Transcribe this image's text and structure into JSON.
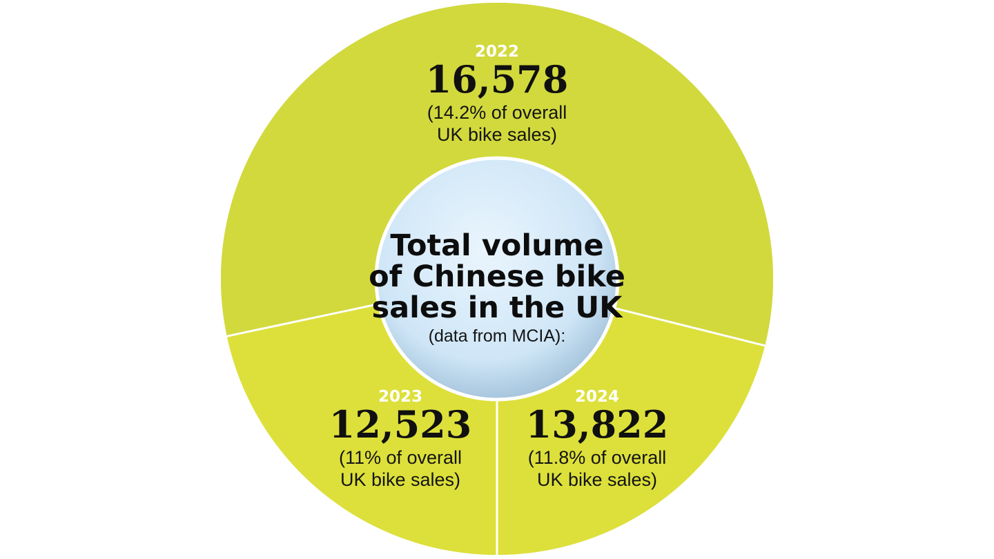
{
  "chart_data": {
    "type": "pie",
    "center_label": {
      "title_lines": [
        "Total volume",
        "of Chinese bike",
        "sales in the UK"
      ],
      "subtitle": "(data from MCIA):"
    },
    "slices": [
      {
        "year": "2022",
        "value": 16578,
        "value_label": "16,578",
        "note_lines": [
          "(14.2% of overall",
          "UK bike sales)"
        ],
        "color": "#bccd44"
      },
      {
        "year": "2023",
        "value": 12523,
        "value_label": "12,523",
        "note_lines": [
          "(11% of overall",
          "UK bike sales)"
        ],
        "color": "#d2d93c"
      },
      {
        "year": "2024",
        "value": 13822,
        "value_label": "13,822",
        "note_lines": [
          "(11.8% of overall",
          "UK bike sales)"
        ],
        "color": "#dde03a"
      }
    ],
    "center_fill": "#cfe6f7",
    "divider_color": "#ffffff"
  }
}
